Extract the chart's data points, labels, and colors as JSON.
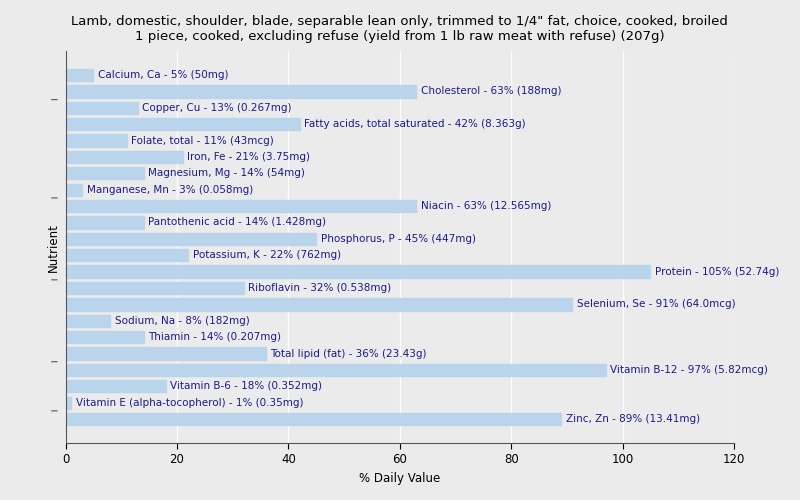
{
  "title": "Lamb, domestic, shoulder, blade, separable lean only, trimmed to 1/4\" fat, choice, cooked, broiled\n1 piece, cooked, excluding refuse (yield from 1 lb raw meat with refuse) (207g)",
  "xlabel": "% Daily Value",
  "ylabel": "Nutrient",
  "nutrients": [
    "Calcium, Ca - 5% (50mg)",
    "Cholesterol - 63% (188mg)",
    "Copper, Cu - 13% (0.267mg)",
    "Fatty acids, total saturated - 42% (8.363g)",
    "Folate, total - 11% (43mcg)",
    "Iron, Fe - 21% (3.75mg)",
    "Magnesium, Mg - 14% (54mg)",
    "Manganese, Mn - 3% (0.058mg)",
    "Niacin - 63% (12.565mg)",
    "Pantothenic acid - 14% (1.428mg)",
    "Phosphorus, P - 45% (447mg)",
    "Potassium, K - 22% (762mg)",
    "Protein - 105% (52.74g)",
    "Riboflavin - 32% (0.538mg)",
    "Selenium, Se - 91% (64.0mcg)",
    "Sodium, Na - 8% (182mg)",
    "Thiamin - 14% (0.207mg)",
    "Total lipid (fat) - 36% (23.43g)",
    "Vitamin B-12 - 97% (5.82mcg)",
    "Vitamin B-6 - 18% (0.352mg)",
    "Vitamin E (alpha-tocopherol) - 1% (0.35mg)",
    "Zinc, Zn - 89% (13.41mg)"
  ],
  "values": [
    5,
    63,
    13,
    42,
    11,
    21,
    14,
    3,
    63,
    14,
    45,
    22,
    105,
    32,
    91,
    8,
    14,
    36,
    97,
    18,
    1,
    89
  ],
  "bar_color": "#bad4ec",
  "background_color": "#ebebeb",
  "xlim": [
    0,
    120
  ],
  "xticks": [
    0,
    20,
    40,
    60,
    80,
    100,
    120
  ],
  "title_fontsize": 9.5,
  "label_fontsize": 7.5,
  "tick_fontsize": 8.5,
  "ylabel_fontsize": 8.5,
  "xlabel_fontsize": 8.5
}
